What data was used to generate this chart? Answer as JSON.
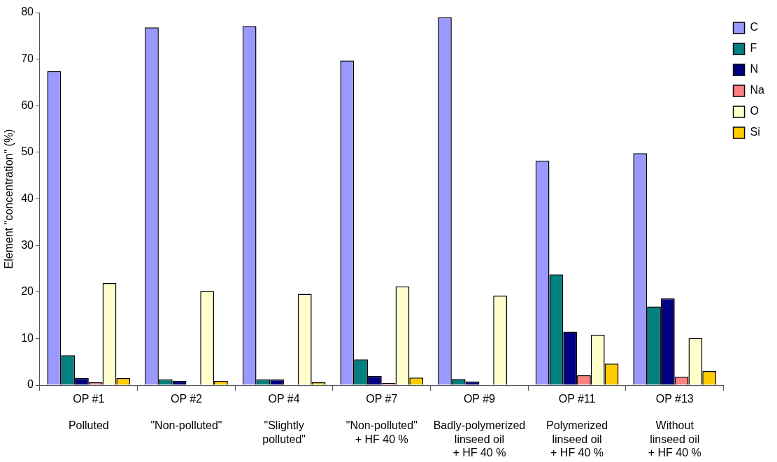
{
  "chart_data": {
    "type": "bar",
    "ylabel": "Element \"concentration\" (%)",
    "categories": [
      "OP #1\n\nPolluted",
      "OP #2\n\n\"Non-polluted\"",
      "OP #4\n\n\"Slightly\npolluted\"",
      "OP #7\n\n\"Non-polluted\"\n+ HF 40 %",
      "OP #9\n\nBadly-polymerized\nlinseed oil\n+ HF 40 %",
      "OP #11\n\nPolymerized\nlinseed oil\n+ HF 40 %",
      "OP #13\n\nWithout\nlinseed oil\n+ HF 40 %"
    ],
    "series": [
      {
        "name": "C",
        "color": "#9999ff",
        "values": [
          67.4,
          76.8,
          77.1,
          69.7,
          79,
          48.2,
          49.8
        ]
      },
      {
        "name": "F",
        "color": "#008080",
        "values": [
          6.4,
          1.2,
          1.2,
          5.5,
          1.3,
          23.8,
          16.9
        ]
      },
      {
        "name": "N",
        "color": "#000080",
        "values": [
          1.5,
          0.9,
          1.2,
          2,
          0.8,
          11.5,
          18.6
        ]
      },
      {
        "name": "Na",
        "color": "#ff8080",
        "values": [
          0.6,
          null,
          null,
          0.5,
          null,
          2.1,
          1.8
        ]
      },
      {
        "name": "O",
        "color": "#ffffcc",
        "values": [
          21.9,
          20.2,
          19.6,
          21.2,
          19.2,
          10.8,
          10.1
        ]
      },
      {
        "name": "Si",
        "color": "#ffcc00",
        "values": [
          1.5,
          0.9,
          0.6,
          1.6,
          null,
          4.6,
          3
        ]
      }
    ],
    "ylim": [
      0,
      80
    ],
    "yticks": [
      0,
      10,
      20,
      30,
      40,
      50,
      60,
      70,
      80
    ],
    "grid": false,
    "legend": "right"
  }
}
